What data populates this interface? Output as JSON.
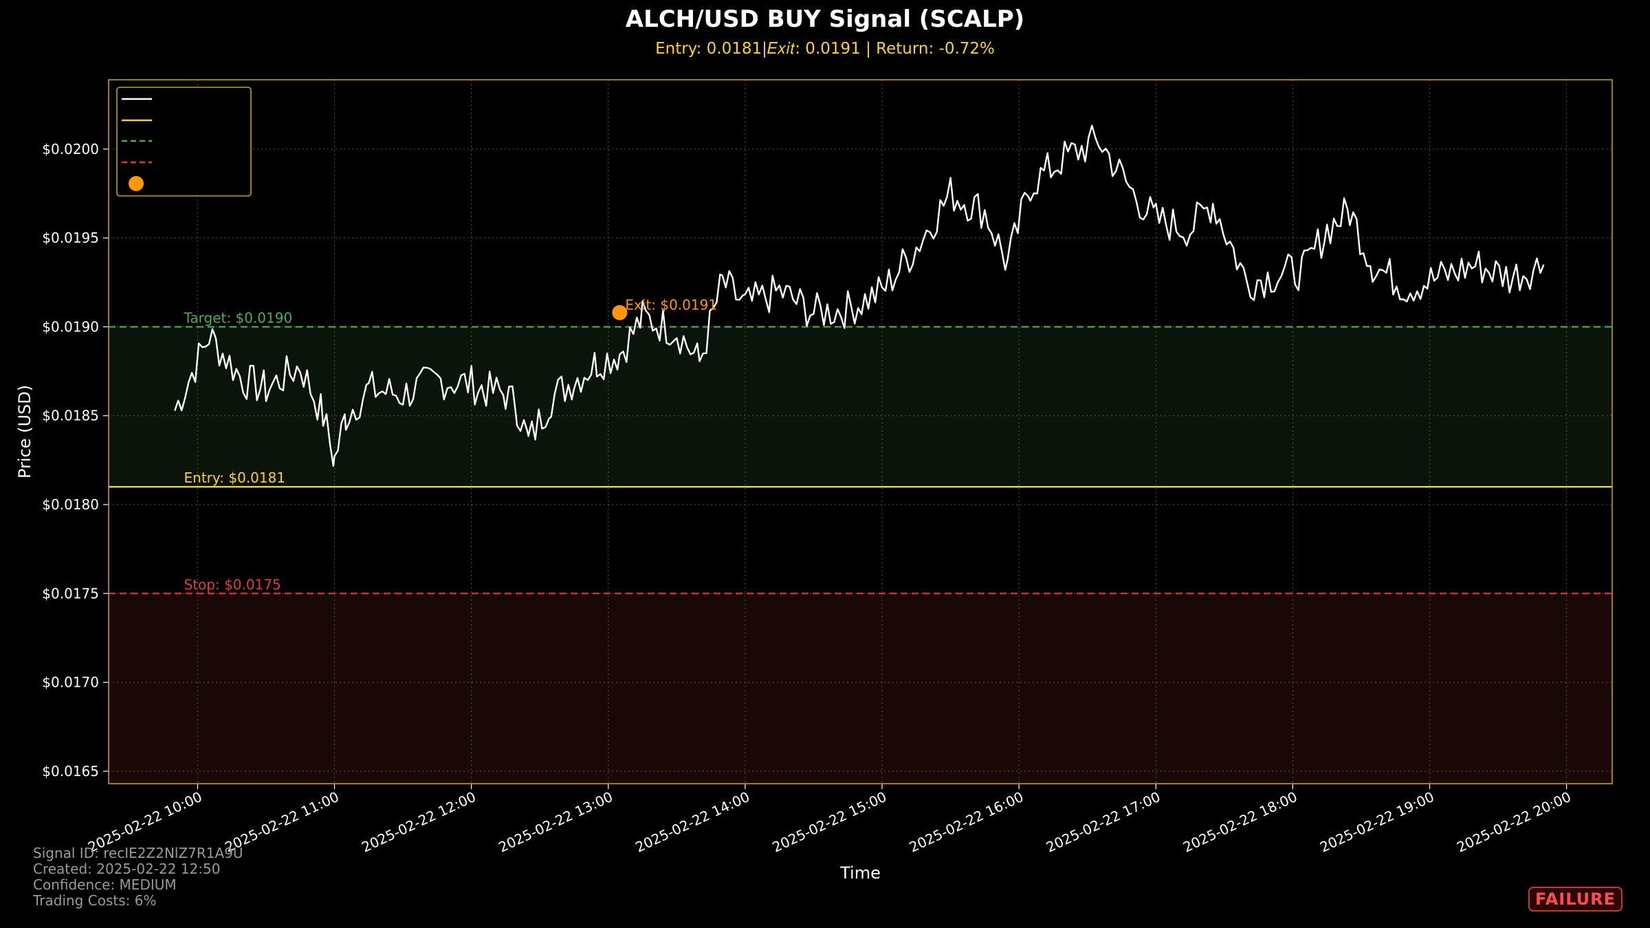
{
  "header": {
    "title": "ALCH/USD BUY Signal (SCALP)",
    "subtitle": "Entry: 0.0181|𝐸𝑥𝑖𝑡: 0.0191 | Return: -0.72%"
  },
  "footer": {
    "signal_id": "Signal ID: recIE2Z2NlZ7R1A9U",
    "created": "Created: 2025-02-22 12:50",
    "confidence": "Confidence: MEDIUM",
    "trading_costs": "Trading Costs: 6%"
  },
  "status_badge": "FAILURE",
  "chart_data": {
    "type": "line",
    "title": "ALCH/USD BUY Signal (SCALP)",
    "xlabel": "Time",
    "ylabel": "Price (USD)",
    "x_ticks": [
      "2025-02-22 10:00",
      "2025-02-22 11:00",
      "2025-02-22 12:00",
      "2025-02-22 13:00",
      "2025-02-22 14:00",
      "2025-02-22 15:00",
      "2025-02-22 16:00",
      "2025-02-22 17:00",
      "2025-02-22 18:00",
      "2025-02-22 19:00",
      "2025-02-22 20:00"
    ],
    "y_ticks": [
      "$0.0165",
      "$0.0170",
      "$0.0175",
      "$0.0180",
      "$0.0185",
      "$0.0190",
      "$0.0195",
      "$0.0200"
    ],
    "y_tick_values": [
      0.0165,
      0.017,
      0.0175,
      0.018,
      0.0185,
      0.019,
      0.0195,
      0.02
    ],
    "xlim": [
      "2025-02-22 09:21",
      "2025-02-22 20:20"
    ],
    "ylim": [
      0.01643,
      0.02039
    ],
    "grid": true,
    "legend_placement": "top-left",
    "series": [
      {
        "values_time": [
          "2025-02-22 09:50",
          "2025-02-22 10:05",
          "2025-02-22 10:20",
          "2025-02-22 10:30",
          "2025-02-22 10:45",
          "2025-02-22 10:55",
          "2025-02-22 11:00",
          "2025-02-22 11:05",
          "2025-02-22 11:15",
          "2025-02-22 11:30",
          "2025-02-22 11:45",
          "2025-02-22 12:00",
          "2025-02-22 12:05",
          "2025-02-22 12:15",
          "2025-02-22 12:20",
          "2025-02-22 12:25",
          "2025-02-22 12:35",
          "2025-02-22 12:45",
          "2025-02-22 12:55",
          "2025-02-22 13:05",
          "2025-02-22 13:15",
          "2025-02-22 13:30",
          "2025-02-22 13:40",
          "2025-02-22 13:50",
          "2025-02-22 14:00",
          "2025-02-22 14:15",
          "2025-02-22 14:30",
          "2025-02-22 14:45",
          "2025-02-22 15:00",
          "2025-02-22 15:15",
          "2025-02-22 15:30",
          "2025-02-22 15:45",
          "2025-02-22 15:55",
          "2025-02-22 16:05",
          "2025-02-22 16:20",
          "2025-02-22 16:35",
          "2025-02-22 16:50",
          "2025-02-22 17:00",
          "2025-02-22 17:15",
          "2025-02-22 17:25",
          "2025-02-22 17:40",
          "2025-02-22 17:55",
          "2025-02-22 18:05",
          "2025-02-22 18:15",
          "2025-02-22 18:25",
          "2025-02-22 18:35",
          "2025-02-22 18:50",
          "2025-02-22 19:05",
          "2025-02-22 19:20",
          "2025-02-22 19:35",
          "2025-02-22 19:50"
        ],
        "values": [
          0.01853,
          0.01895,
          0.0187,
          0.01865,
          0.01878,
          0.0185,
          0.01825,
          0.0185,
          0.01865,
          0.01862,
          0.0187,
          0.01868,
          0.01865,
          0.01862,
          0.01855,
          0.01835,
          0.0186,
          0.0187,
          0.0188,
          0.01885,
          0.01905,
          0.01898,
          0.0188,
          0.01925,
          0.01912,
          0.0192,
          0.01908,
          0.0191,
          0.0192,
          0.01945,
          0.01975,
          0.01965,
          0.01935,
          0.0198,
          0.01995,
          0.02005,
          0.01975,
          0.0196,
          0.01955,
          0.0197,
          0.01925,
          0.0193,
          0.01932,
          0.01955,
          0.01965,
          0.01935,
          0.01922,
          0.01928,
          0.01935,
          0.01928,
          0.01935
        ]
      }
    ],
    "levels": [
      {
        "label": "Target: $0.0190",
        "value": 0.019,
        "color": "#4caf50",
        "style": "dashed"
      },
      {
        "label": "Entry: $0.0181",
        "value": 0.0181,
        "color": "#ffd21f",
        "style": "solid"
      },
      {
        "label": "Stop: $0.0175",
        "value": 0.0175,
        "color": "#e53935",
        "style": "dashed"
      }
    ],
    "exit_point": {
      "label": "Exit: $0.0191",
      "time": "2025-02-22 13:05",
      "value": 0.01908,
      "color": "#ff9800"
    },
    "colors": {
      "price": "#ffffff",
      "frame": "#c8a000",
      "grid": "#6b6b2a",
      "profit_zone": "#0b140b",
      "loss_zone": "#1a0807"
    }
  }
}
